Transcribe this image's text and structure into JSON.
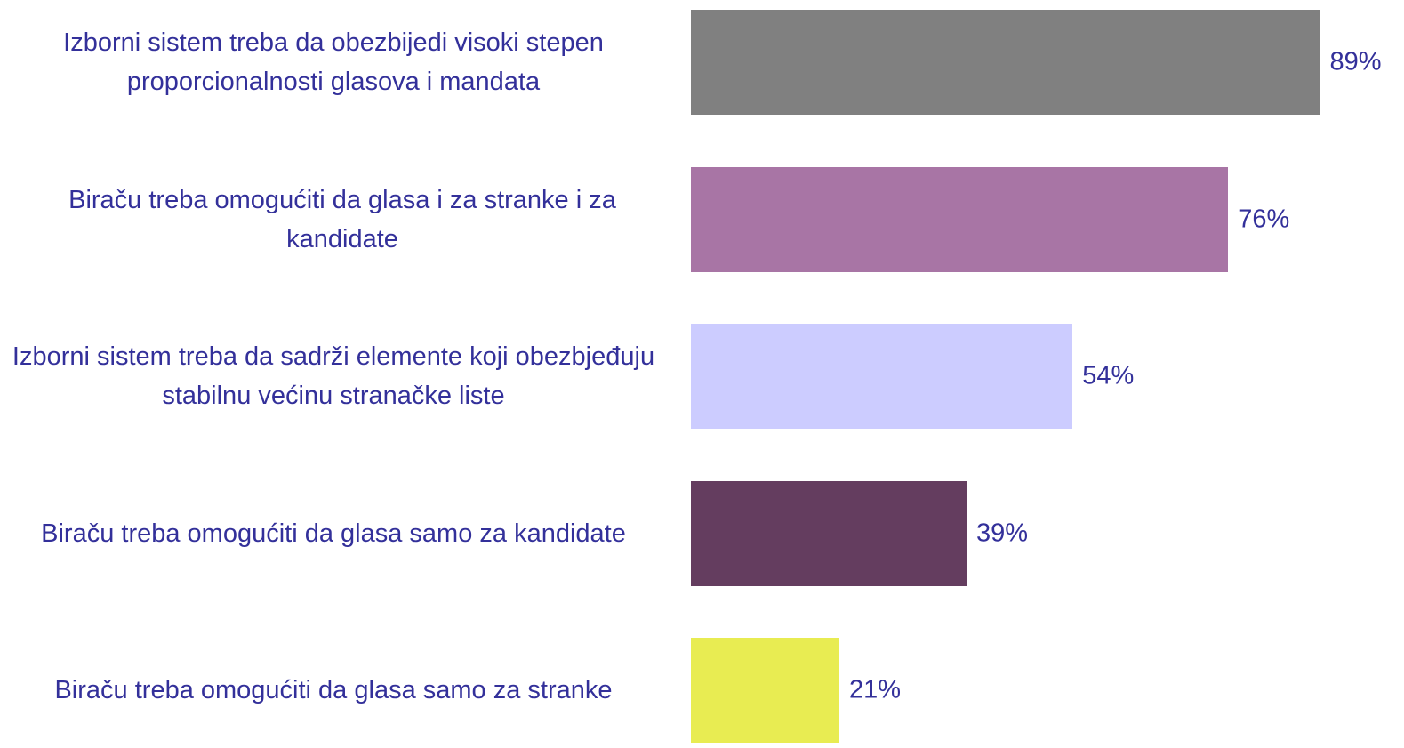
{
  "chart_data": {
    "type": "bar",
    "orientation": "horizontal",
    "categories": [
      "Izborni sistem treba da obezbijedi visoki stepen proporcionalnosti glasova i mandata",
      "Biraču treba omogućiti da glasa i za stranke i za kandidate",
      "Izborni sistem treba da sadrži elemente koji obezbjeđuju stabilnu većinu stranačke liste",
      "Biraču treba omogućiti da glasa samo za kandidate",
      "Biraču treba omogućiti da glasa samo za stranke"
    ],
    "values": [
      89,
      76,
      54,
      39,
      21
    ],
    "value_labels": [
      "89%",
      "76%",
      "54%",
      "39%",
      "21%"
    ],
    "colors": [
      "#808080",
      "#a875a5",
      "#ccccff",
      "#643d5f",
      "#e8ec52"
    ],
    "xlim": [
      0,
      100
    ]
  }
}
